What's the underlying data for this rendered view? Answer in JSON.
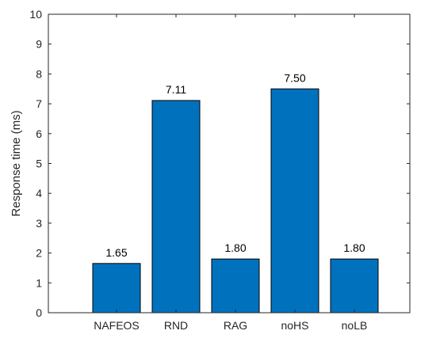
{
  "chart_data": {
    "type": "bar",
    "categories": [
      "NAFEOS",
      "RND",
      "RAG",
      "noHS",
      "noLB"
    ],
    "values": [
      1.65,
      7.11,
      1.8,
      7.5,
      1.8
    ],
    "data_labels": [
      "1.65",
      "7.11",
      "1.80",
      "7.50",
      "1.80"
    ],
    "title": "",
    "xlabel": "",
    "ylabel": "Response time (ms)",
    "ylim": [
      0,
      10
    ],
    "yticks": [
      0,
      1,
      2,
      3,
      4,
      5,
      6,
      7,
      8,
      9,
      10
    ],
    "grid": false,
    "legend": "none",
    "bar_color": "#0072BD",
    "bar_edge_color": "#000000"
  }
}
